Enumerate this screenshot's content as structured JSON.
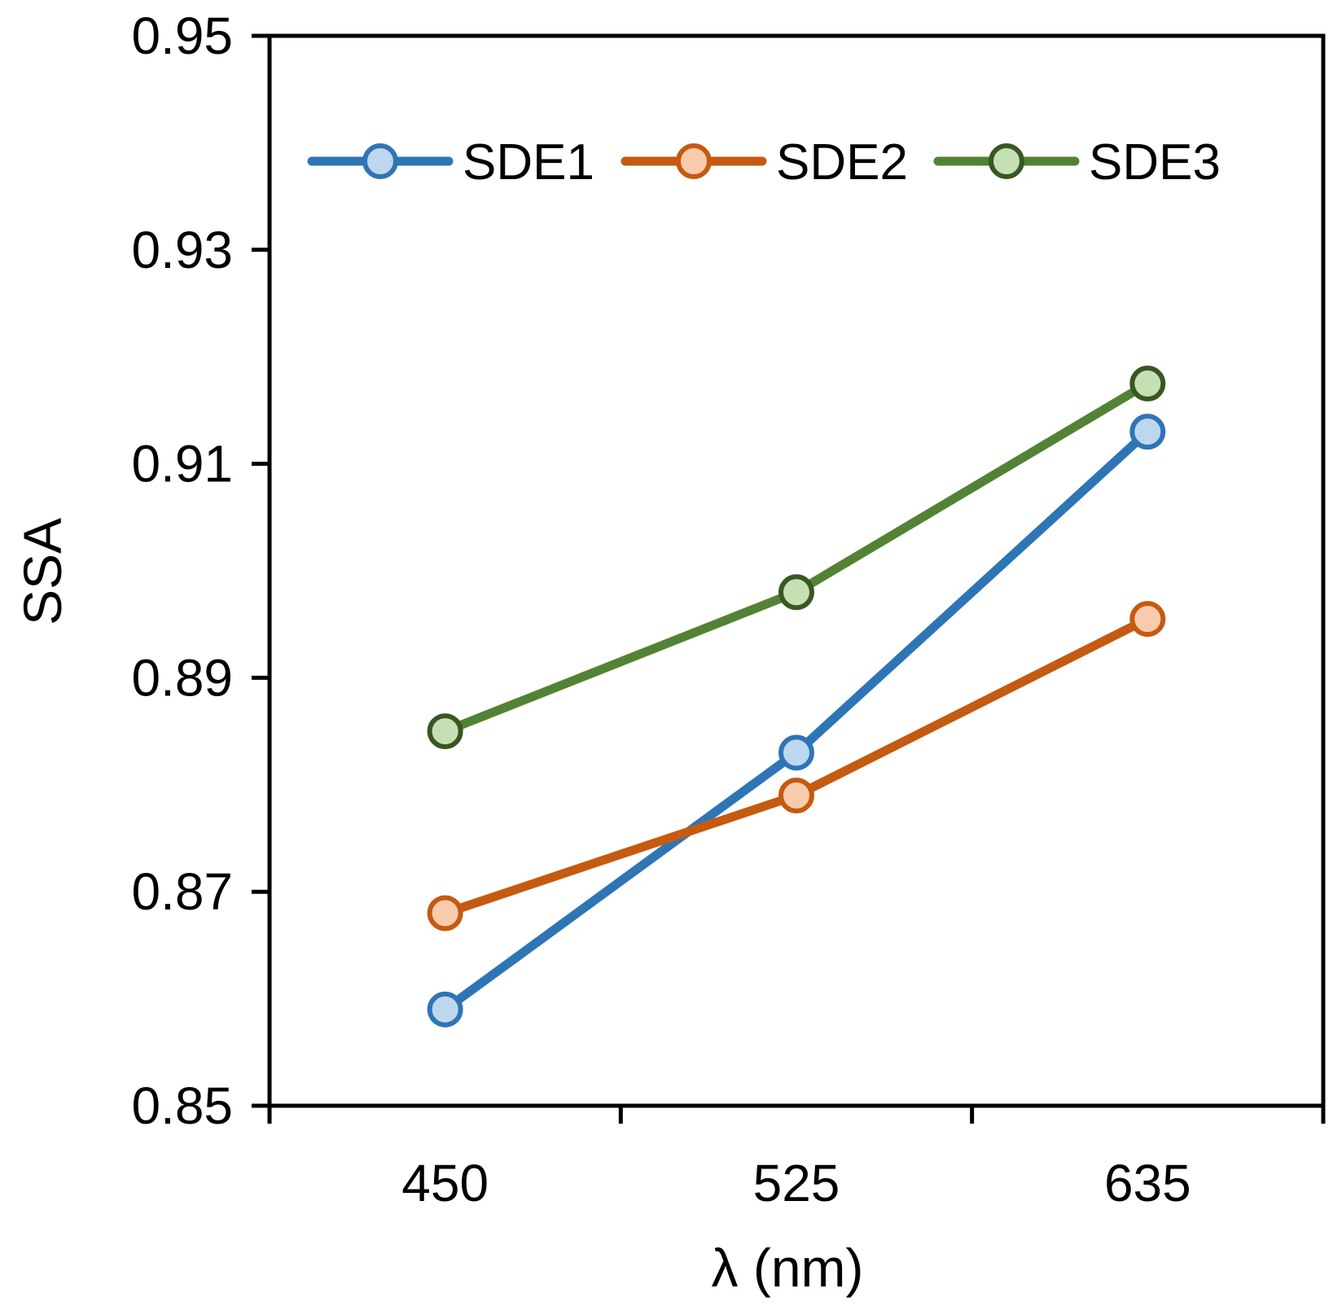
{
  "chart_data": {
    "type": "line",
    "title": "",
    "xlabel": "λ (nm)",
    "ylabel": "SSA",
    "categories": [
      "450",
      "525",
      "635"
    ],
    "ylim": [
      0.85,
      0.95
    ],
    "yticks": [
      "0.85",
      "0.87",
      "0.89",
      "0.91",
      "0.93",
      "0.95"
    ],
    "grid": false,
    "legend_position": "top",
    "series": [
      {
        "name": "SDE1",
        "values": [
          0.859,
          0.883,
          0.913
        ],
        "line_color": "#2E75B6",
        "marker_fill": "#BDD7EE",
        "marker_edge": "#2E75B6"
      },
      {
        "name": "SDE2",
        "values": [
          0.868,
          0.879,
          0.8955
        ],
        "line_color": "#C55A11",
        "marker_fill": "#F8CBAD",
        "marker_edge": "#C55A11"
      },
      {
        "name": "SDE3",
        "values": [
          0.885,
          0.898,
          0.9175
        ],
        "line_color": "#548235",
        "marker_fill": "#C5E0B4",
        "marker_edge": "#385723"
      }
    ]
  }
}
